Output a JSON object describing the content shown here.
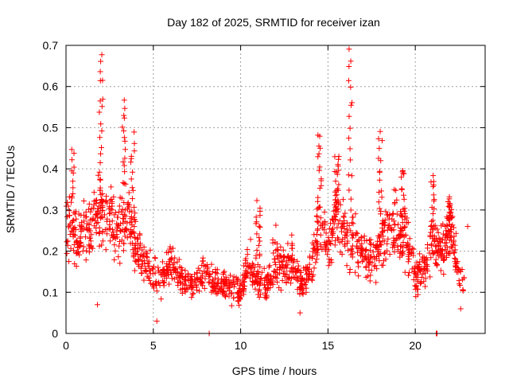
{
  "chart_data": {
    "type": "scatter",
    "title": "Day 182 of 2025, SRMTID for receiver izan",
    "xlabel": "GPS time / hours",
    "ylabel": "SRMTID / TECUs",
    "xlim": [
      0,
      24
    ],
    "ylim": [
      0,
      0.7
    ],
    "x_ticks": [
      0,
      5,
      10,
      15,
      20
    ],
    "y_ticks": [
      0,
      0.1,
      0.2,
      0.3,
      0.4,
      0.5,
      0.6,
      0.7
    ],
    "x_tick_labels": [
      "0",
      "5",
      "10",
      "15",
      "20"
    ],
    "y_tick_labels": [
      "0",
      "0.1",
      "0.2",
      "0.3",
      "0.4",
      "0.5",
      "0.6",
      "0.7"
    ],
    "grid": true,
    "marker": "+",
    "color": "#ff0000",
    "trend": [
      [
        0.0,
        0.26
      ],
      [
        0.3,
        0.27
      ],
      [
        0.6,
        0.23
      ],
      [
        1.0,
        0.24
      ],
      [
        1.5,
        0.26
      ],
      [
        2.0,
        0.3
      ],
      [
        2.5,
        0.28
      ],
      [
        3.0,
        0.25
      ],
      [
        3.5,
        0.27
      ],
      [
        4.0,
        0.22
      ],
      [
        4.5,
        0.17
      ],
      [
        5.0,
        0.14
      ],
      [
        5.5,
        0.13
      ],
      [
        6.0,
        0.16
      ],
      [
        6.5,
        0.14
      ],
      [
        7.0,
        0.12
      ],
      [
        7.5,
        0.13
      ],
      [
        8.0,
        0.14
      ],
      [
        8.5,
        0.12
      ],
      [
        9.0,
        0.12
      ],
      [
        9.5,
        0.11
      ],
      [
        10.0,
        0.1
      ],
      [
        10.5,
        0.17
      ],
      [
        11.0,
        0.13
      ],
      [
        11.5,
        0.11
      ],
      [
        12.0,
        0.19
      ],
      [
        12.5,
        0.16
      ],
      [
        13.0,
        0.18
      ],
      [
        13.5,
        0.11
      ],
      [
        14.0,
        0.15
      ],
      [
        14.5,
        0.26
      ],
      [
        15.0,
        0.21
      ],
      [
        15.5,
        0.3
      ],
      [
        16.0,
        0.23
      ],
      [
        16.5,
        0.22
      ],
      [
        17.0,
        0.19
      ],
      [
        17.5,
        0.17
      ],
      [
        18.0,
        0.22
      ],
      [
        18.5,
        0.25
      ],
      [
        19.0,
        0.26
      ],
      [
        19.5,
        0.24
      ],
      [
        20.0,
        0.13
      ],
      [
        20.5,
        0.16
      ],
      [
        21.0,
        0.23
      ],
      [
        21.5,
        0.2
      ],
      [
        22.0,
        0.25
      ],
      [
        22.5,
        0.14
      ],
      [
        22.8,
        0.12
      ]
    ],
    "peaks": [
      [
        0.4,
        0.45
      ],
      [
        2.0,
        0.67
      ],
      [
        3.3,
        0.56
      ],
      [
        3.8,
        0.48
      ],
      [
        11.0,
        0.32
      ],
      [
        14.5,
        0.49
      ],
      [
        15.5,
        0.43
      ],
      [
        16.3,
        0.69
      ],
      [
        18.0,
        0.49
      ],
      [
        19.3,
        0.4
      ],
      [
        21.0,
        0.39
      ],
      [
        22.0,
        0.33
      ]
    ],
    "outliers": [
      [
        8.2,
        0.0
      ],
      [
        21.2,
        0.0
      ],
      [
        21.25,
        0.0
      ],
      [
        1.8,
        0.07
      ],
      [
        5.2,
        0.03
      ],
      [
        13.4,
        0.05
      ],
      [
        22.6,
        0.06
      ],
      [
        23.0,
        0.26
      ]
    ]
  }
}
